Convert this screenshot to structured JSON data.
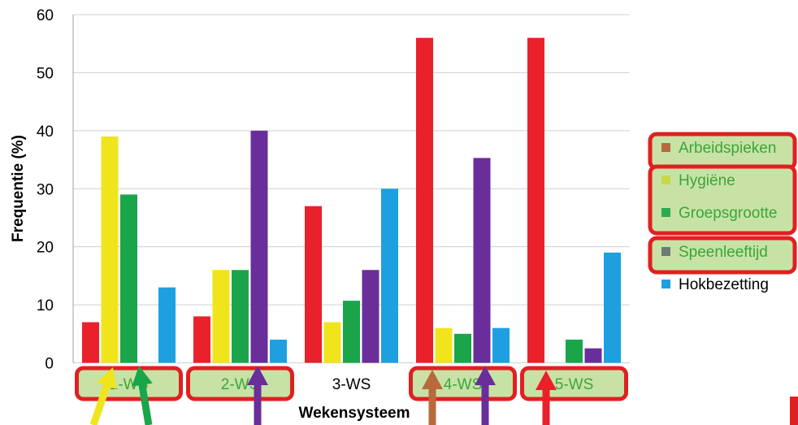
{
  "chart_data": {
    "type": "bar",
    "xlabel": "Wekensysteem",
    "ylabel": "Frequentie (%)",
    "ylim": [
      0,
      60
    ],
    "yticks": [
      0,
      10,
      20,
      30,
      40,
      50,
      60
    ],
    "grid": true,
    "legend_position": "right",
    "categories": [
      "1-WS",
      "2-WS",
      "3-WS",
      "4-WS",
      "5-WS"
    ],
    "series": [
      {
        "name": "Arbeidspieken",
        "color": "#e8212a",
        "values": [
          7,
          8,
          27,
          56,
          56
        ]
      },
      {
        "name": "Hygiëne",
        "color": "#f0e51c",
        "values": [
          39,
          16,
          7,
          6,
          0
        ]
      },
      {
        "name": "Groepsgrootte",
        "color": "#1aa54a",
        "values": [
          29,
          16,
          10.7,
          5,
          4
        ]
      },
      {
        "name": "Speenleeftijd",
        "color": "#6a2e9a",
        "values": [
          0,
          40,
          16,
          35.3,
          2.5
        ]
      },
      {
        "name": "Hokbezetting",
        "color": "#1ea0e0",
        "values": [
          13,
          4,
          30,
          6,
          19
        ]
      }
    ],
    "legend_marker_colors": [
      "#b86a3c",
      "#c9d84a",
      "#2daa55",
      "#6b7c72",
      "#1ea0e0"
    ],
    "highlight_colors": {
      "box_border": "#e02020",
      "box_fill": "#c8e2a6",
      "highlighted_category_text": "#3aa63a",
      "plain_category_text": "#000000"
    },
    "highlighted_categories": [
      true,
      true,
      false,
      true,
      true
    ],
    "highlighted_legend": [
      true,
      true,
      true,
      true,
      false
    ],
    "arrows": [
      {
        "category": "1-WS",
        "color": "#f0e51c"
      },
      {
        "category": "1-WS",
        "color": "#1aa54a"
      },
      {
        "category": "2-WS",
        "color": "#6a2e9a"
      },
      {
        "category": "4-WS",
        "color": "#b86a3c"
      },
      {
        "category": "4-WS",
        "color": "#6a2e9a"
      },
      {
        "category": "5-WS",
        "color": "#e8212a"
      }
    ]
  }
}
